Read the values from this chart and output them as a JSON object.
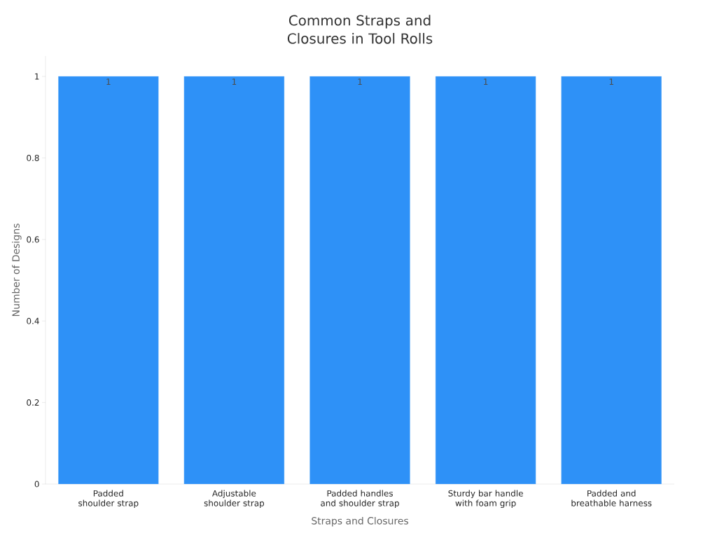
{
  "chart_data": {
    "type": "bar",
    "title": "Common Straps and Closures in Tool Rolls",
    "xlabel": "Straps and Closures",
    "ylabel": "Number of Designs",
    "categories": [
      "Padded shoulder strap",
      "Adjustable shoulder strap",
      "Padded handles and shoulder strap",
      "Sturdy bar handle with foam grip",
      "Padded and breathable harness"
    ],
    "values": [
      1,
      1,
      1,
      1,
      1
    ],
    "color": "#2e91f7",
    "ylim": [
      0,
      1.05
    ],
    "yticks": [
      0,
      0.2,
      0.4,
      0.6,
      0.8,
      1
    ],
    "data_labels": true
  }
}
